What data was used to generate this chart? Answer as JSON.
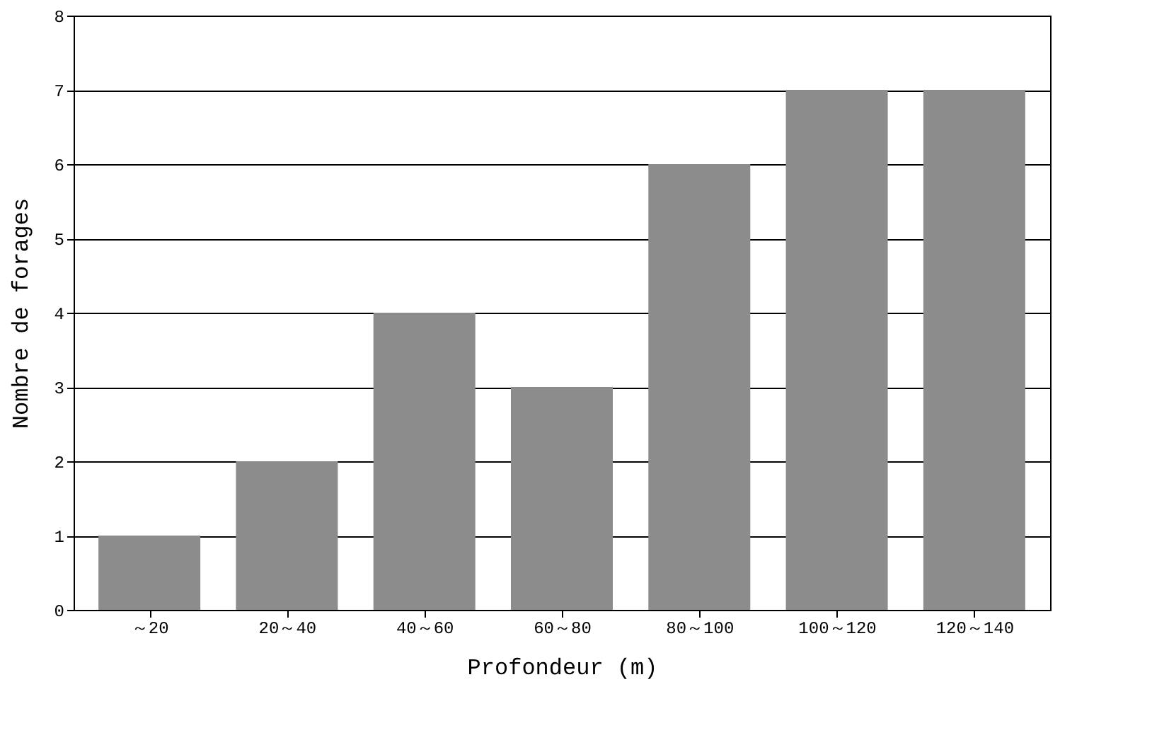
{
  "chart_data": {
    "type": "bar",
    "xlabel": "Profondeur (m)",
    "ylabel": "Nombre de forages",
    "categories": [
      "～20",
      "20～40",
      "40～60",
      "60～80",
      "80～100",
      "100～120",
      "120～140"
    ],
    "values": [
      1,
      2,
      4,
      3,
      6,
      7,
      7
    ],
    "color": "#8c8c8c",
    "ylim": [
      0,
      8
    ],
    "yticks": [
      0,
      1,
      2,
      3,
      4,
      5,
      6,
      7,
      8
    ],
    "grid": "y"
  }
}
